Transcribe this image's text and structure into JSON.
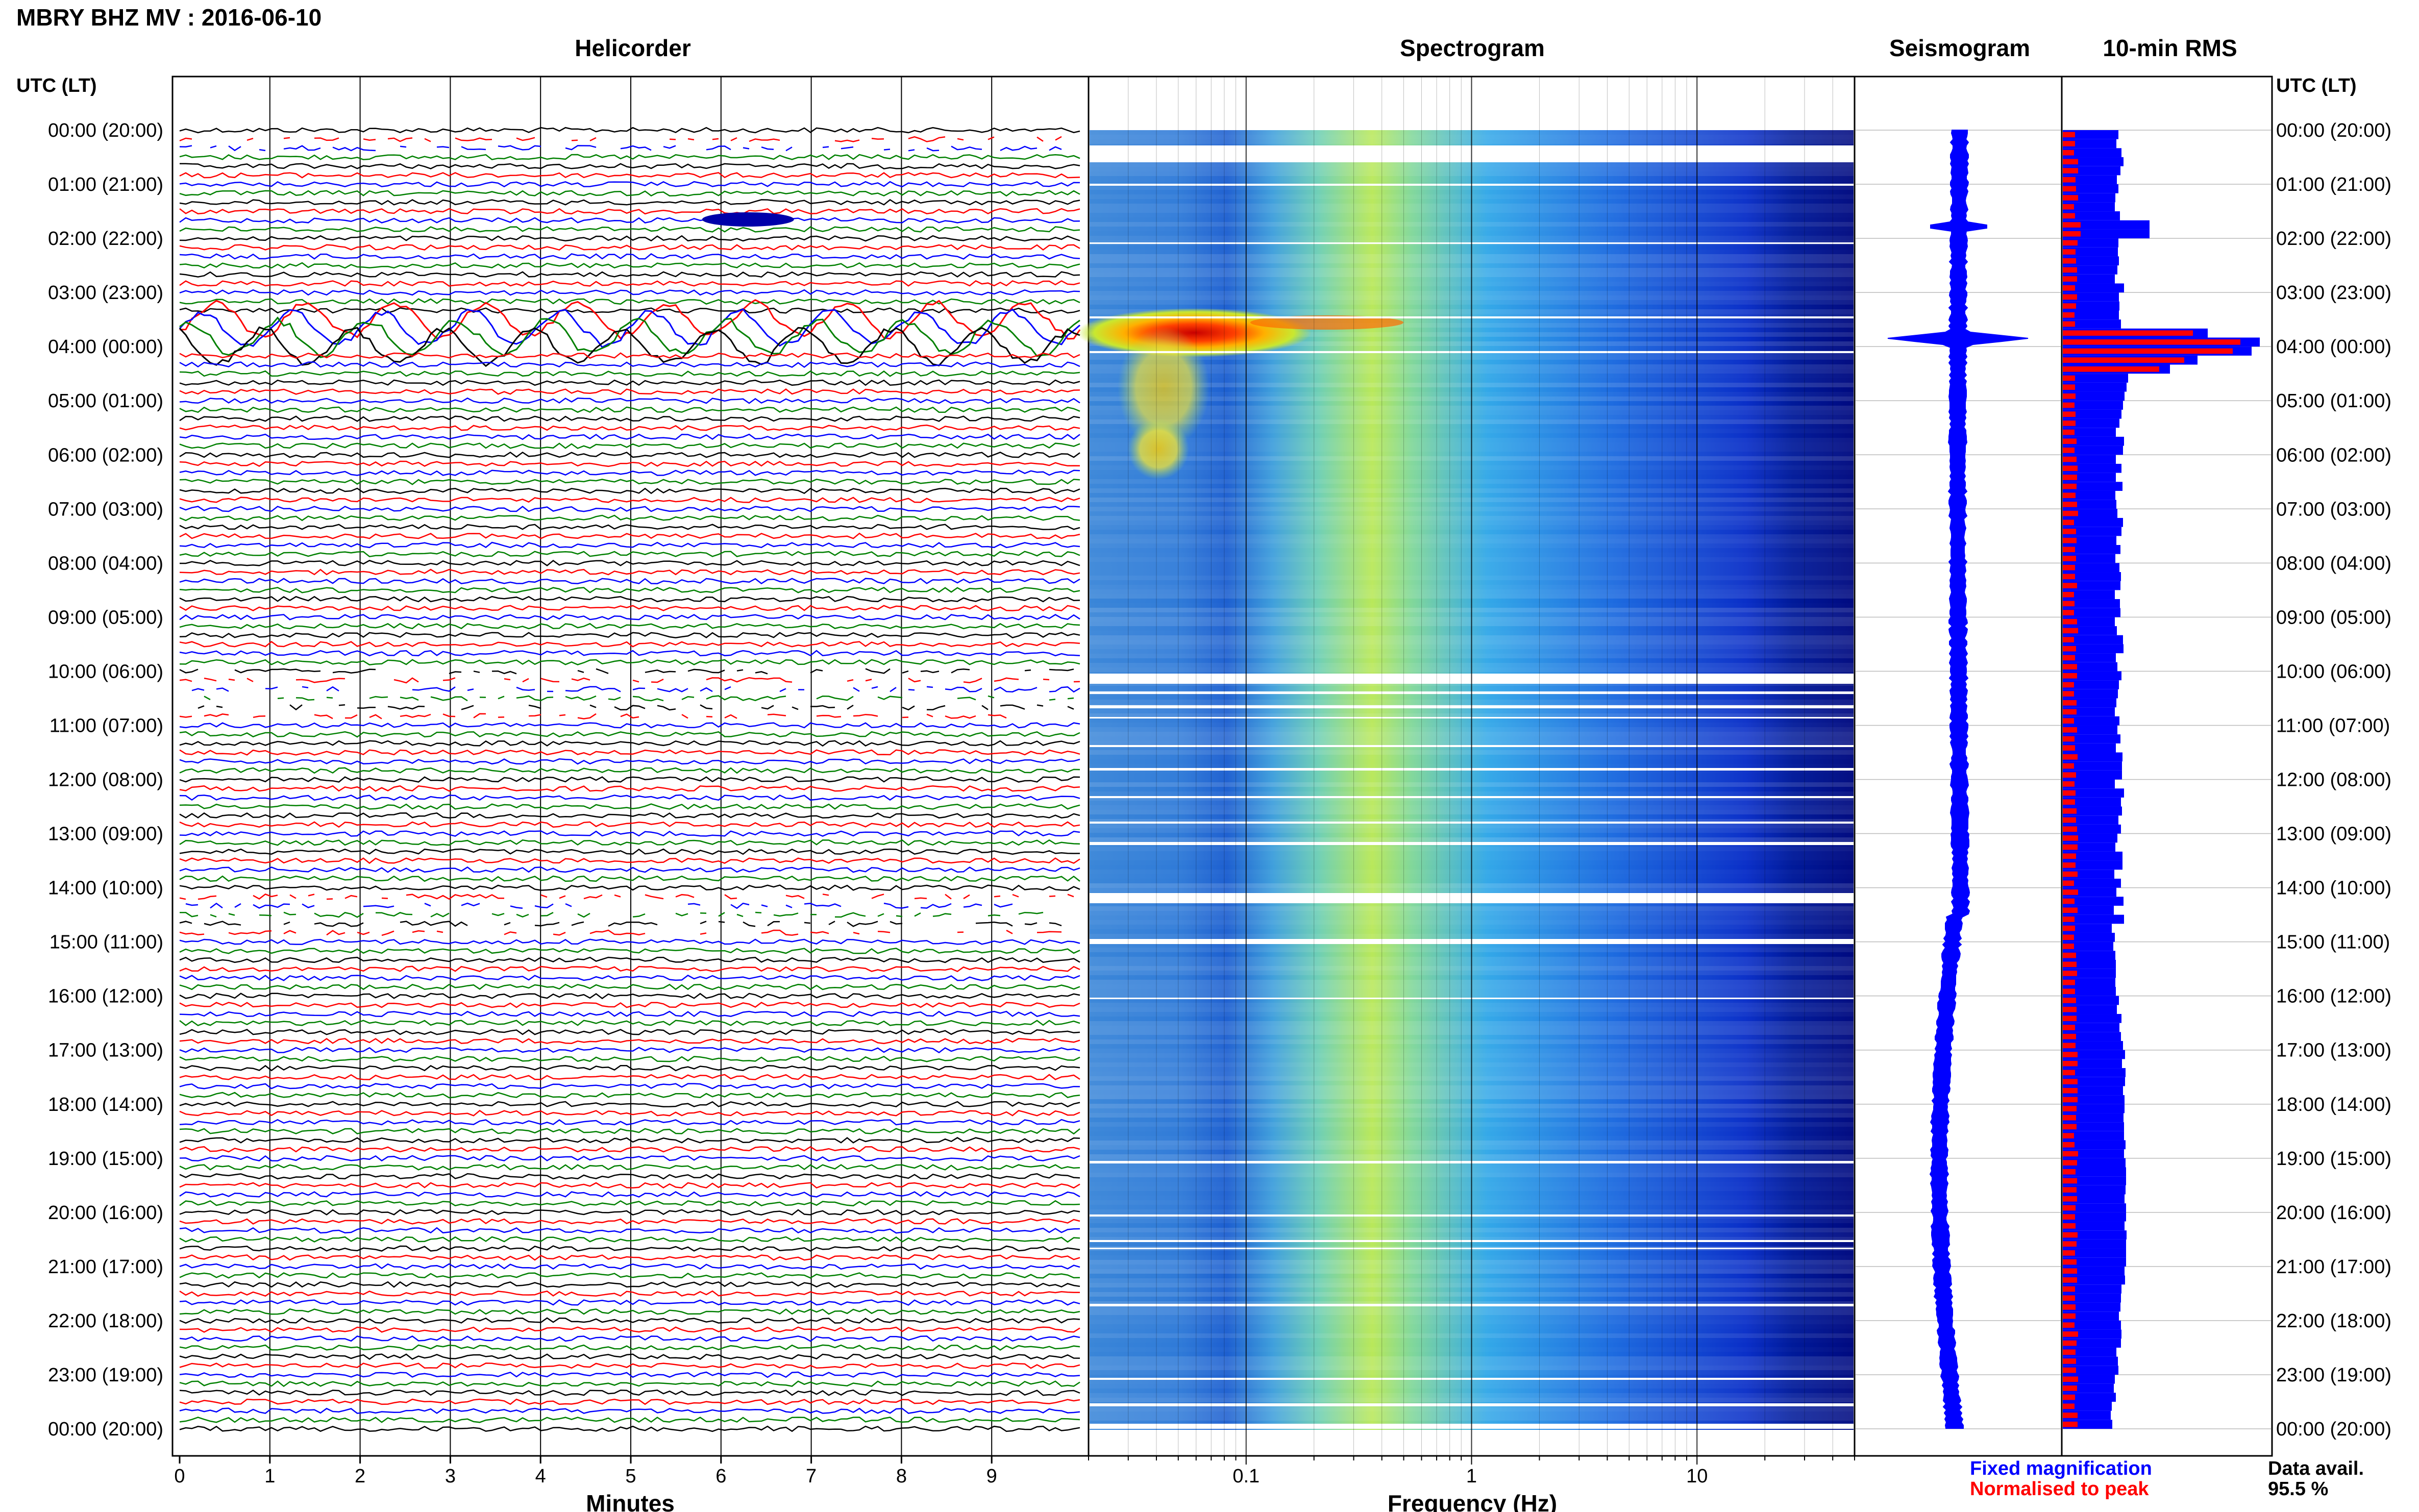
{
  "title": "MBRY BHZ MV : 2016-06-10",
  "utc_label_left": "UTC (LT)",
  "utc_label_right": "UTC (LT)",
  "time_labels": [
    "00:00 (20:00)",
    "01:00 (21:00)",
    "02:00 (22:00)",
    "03:00 (23:00)",
    "04:00 (00:00)",
    "05:00 (01:00)",
    "06:00 (02:00)",
    "07:00 (03:00)",
    "08:00 (04:00)",
    "09:00 (05:00)",
    "10:00 (06:00)",
    "11:00 (07:00)",
    "12:00 (08:00)",
    "13:00 (09:00)",
    "14:00 (10:00)",
    "15:00 (11:00)",
    "16:00 (12:00)",
    "17:00 (13:00)",
    "18:00 (14:00)",
    "19:00 (15:00)",
    "20:00 (16:00)",
    "21:00 (17:00)",
    "22:00 (18:00)",
    "23:00 (19:00)",
    "00:00 (20:00)"
  ],
  "legend": {
    "fixed": "Fixed magnification",
    "normalised": "Normalised to peak",
    "fixed_color": "#0000ff",
    "normalised_color": "#ff0000"
  },
  "data_avail": {
    "label": "Data avail.",
    "value": "95.5 %"
  },
  "chart_data": [
    {
      "type": "line",
      "title": "Helicorder",
      "xlabel": "Minutes",
      "xlim": [
        0,
        10
      ],
      "x_ticks": [
        "0",
        "1",
        "2",
        "3",
        "4",
        "5",
        "6",
        "7",
        "8",
        "9"
      ],
      "trace_colors": [
        "#000000",
        "#ff0000",
        "#0000ff",
        "#008000"
      ],
      "event_hours": [
        3.8,
        4.0
      ]
    },
    {
      "type": "heatmap",
      "title": "Spectrogram",
      "xlabel": "Frequency (Hz)",
      "x_scale": "log",
      "xlim": [
        0.02,
        50
      ],
      "x_ticks": [
        "0.1",
        "1",
        "10"
      ]
    },
    {
      "type": "line",
      "title": "Seismogram",
      "series": [
        {
          "color": "#0000ff"
        }
      ]
    },
    {
      "type": "bar",
      "title": "10-min RMS",
      "series": [
        {
          "name": "Fixed magnification",
          "color": "#0000ff"
        },
        {
          "name": "Normalised to peak",
          "color": "#ff0000"
        }
      ]
    }
  ]
}
